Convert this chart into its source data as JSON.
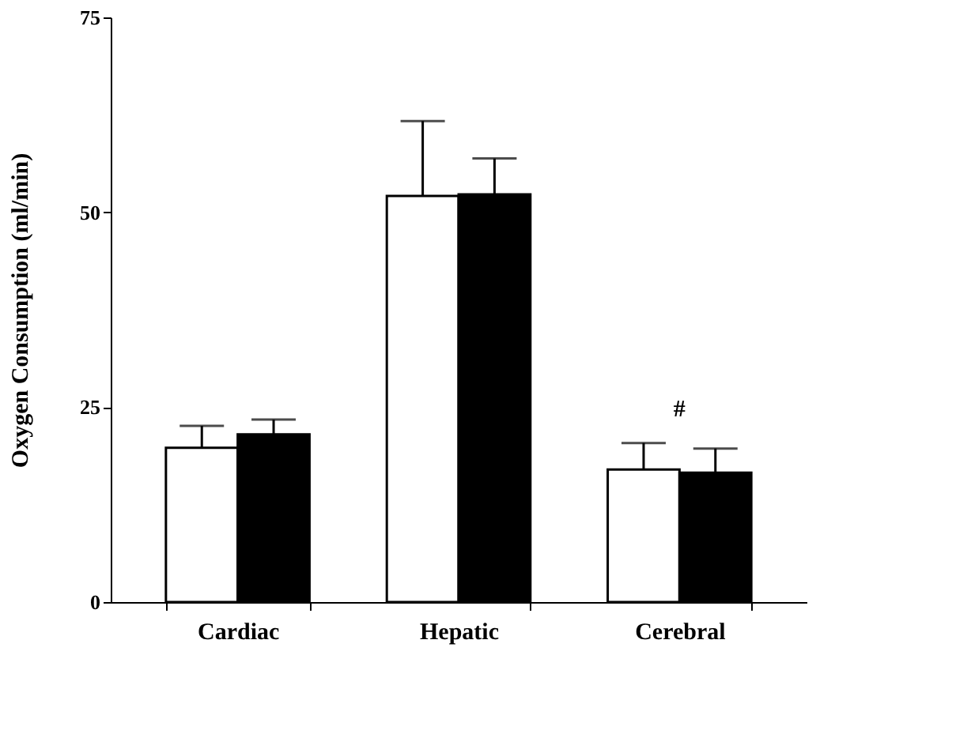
{
  "chart_data": {
    "type": "bar",
    "ylabel": "Oxygen Consumption  (ml/min)",
    "categories": [
      "Cardiac",
      "Hepatic",
      "Cerebral"
    ],
    "series": [
      {
        "color": "#ffffff",
        "values": [
          19.8,
          52.1,
          17.0
        ],
        "errors": [
          [
            19.8,
            22.6
          ],
          [
            52.1,
            61.7
          ],
          [
            17.0,
            20.4
          ]
        ]
      },
      {
        "color": "#000000",
        "values": [
          21.5,
          52.3,
          16.6
        ],
        "errors": [
          [
            21.5,
            23.4
          ],
          [
            52.3,
            56.9
          ],
          [
            16.6,
            19.7
          ]
        ]
      }
    ],
    "ylim": [
      0,
      75
    ],
    "yticks": [
      0,
      25,
      50,
      75
    ],
    "grid": false,
    "legend": false,
    "annotations": [
      "#"
    ]
  }
}
